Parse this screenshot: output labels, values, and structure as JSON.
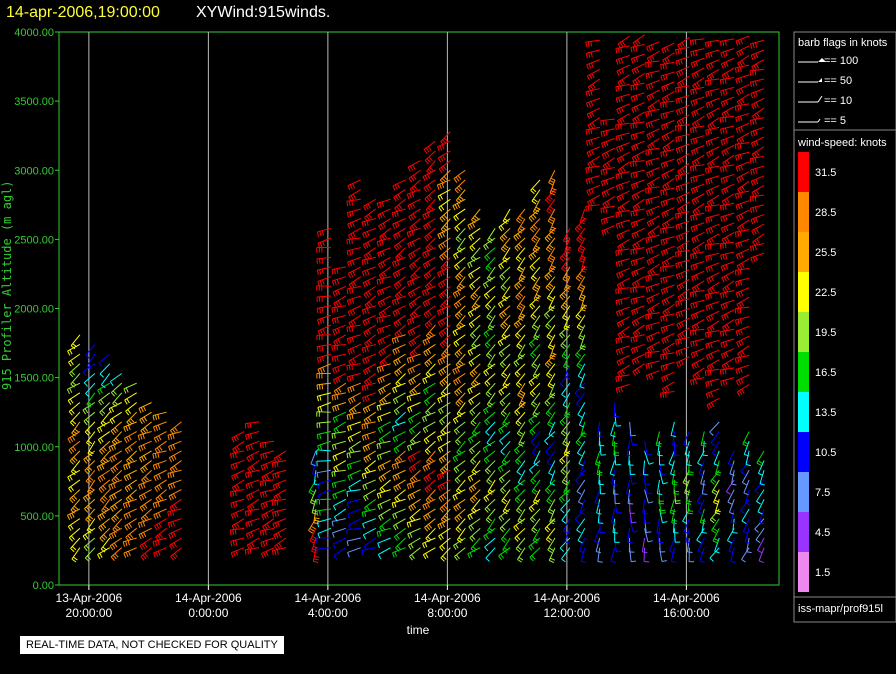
{
  "title": {
    "date": "14-apr-2006,19:00:00",
    "name": "XYWind:915winds."
  },
  "notice": "REAL-TIME DATA, NOT CHECKED FOR QUALITY",
  "source": "iss-mapr/prof915l",
  "chart_data": {
    "type": "wind-barb",
    "xlabel": "time",
    "ylabel": "915 Profiler Altitude (m agl)",
    "ylim": [
      0,
      4000
    ],
    "yticks": [
      "0.00",
      "500.00",
      "1000.00",
      "1500.00",
      "2000.00",
      "2500.00",
      "3000.00",
      "3500.00",
      "4000.00"
    ],
    "xticks": [
      {
        "date": "13-Apr-2006",
        "time": "20:00:00",
        "hour": 20
      },
      {
        "date": "14-Apr-2006",
        "time": "0:00:00",
        "hour": 24
      },
      {
        "date": "14-Apr-2006",
        "time": "4:00:00",
        "hour": 28
      },
      {
        "date": "14-Apr-2006",
        "time": "8:00:00",
        "hour": 32
      },
      {
        "date": "14-Apr-2006",
        "time": "12:00:00",
        "hour": 36
      },
      {
        "date": "14-Apr-2006",
        "time": "16:00:00",
        "hour": 40
      }
    ],
    "xrange_hours": [
      19.0,
      43.1
    ],
    "grid": "vertical",
    "barb_legend": {
      "title": "barb flags in knots",
      "entries": [
        "== 100",
        "== 50",
        "== 10",
        "== 5"
      ]
    },
    "speed_legend": {
      "title": "wind-speed: knots",
      "bins": [
        {
          "label": "31.5",
          "color": "#ff0000"
        },
        {
          "label": "28.5",
          "color": "#ff8800"
        },
        {
          "label": "25.5",
          "color": "#ffaa00"
        },
        {
          "label": "22.5",
          "color": "#ffff00"
        },
        {
          "label": "19.5",
          "color": "#99ee33"
        },
        {
          "label": "16.5",
          "color": "#00dd00"
        },
        {
          "label": "13.5",
          "color": "#00ffff"
        },
        {
          "label": "10.5",
          "color": "#0000ff"
        },
        {
          "label": "7.5",
          "color": "#6699ff"
        },
        {
          "label": "4.5",
          "color": "#9933ff"
        },
        {
          "label": "1.5",
          "color": "#ee88ee"
        }
      ]
    },
    "profiles": [
      {
        "hour": 19.7,
        "top": 1800,
        "speeds": [
          22,
          22,
          25,
          25,
          22,
          22,
          25,
          28,
          25,
          22,
          22,
          19,
          19,
          22,
          22
        ],
        "dirs": [
          230
        ]
      },
      {
        "hour": 20.2,
        "top": 1750,
        "speeds": [
          19,
          22,
          25,
          25,
          28,
          25,
          22,
          22,
          19,
          16,
          13,
          10,
          10
        ],
        "dirs": [
          225
        ]
      },
      {
        "hour": 20.7,
        "top": 1700,
        "speeds": [
          22,
          25,
          25,
          28,
          28,
          25,
          25,
          22,
          22,
          19,
          16,
          13,
          10
        ],
        "dirs": [
          230
        ]
      },
      {
        "hour": 21.1,
        "top": 1500,
        "speeds": [
          28,
          28,
          25,
          25,
          28,
          28,
          25,
          25,
          22,
          19,
          13
        ],
        "dirs": [
          235
        ]
      },
      {
        "hour": 21.6,
        "top": 1450,
        "speeds": [
          28,
          28,
          28,
          25,
          25,
          25,
          28,
          25,
          22,
          19
        ],
        "dirs": [
          240
        ]
      },
      {
        "hour": 22.1,
        "top": 1300,
        "speeds": [
          31,
          28,
          28,
          28,
          28,
          25,
          28,
          25,
          25
        ],
        "dirs": [
          240
        ]
      },
      {
        "hour": 22.6,
        "top": 1250,
        "speeds": [
          31,
          31,
          28,
          28,
          28,
          28,
          28,
          25
        ],
        "dirs": [
          245
        ]
      },
      {
        "hour": 23.1,
        "top": 1200,
        "speeds": [
          31,
          31,
          31,
          28,
          28,
          28,
          28,
          28
        ],
        "dirs": [
          245
        ]
      },
      {
        "hour": 25.2,
        "top": 1100,
        "speeds": [
          31,
          31,
          31,
          31,
          31,
          31,
          31,
          31
        ],
        "dirs": [
          250
        ]
      },
      {
        "hour": 25.7,
        "top": 1150,
        "speeds": [
          31,
          31,
          31,
          31,
          31,
          31,
          31,
          31
        ],
        "dirs": [
          250
        ]
      },
      {
        "hour": 26.2,
        "top": 1050,
        "speeds": [
          31,
          31,
          31,
          31,
          31,
          31,
          31
        ],
        "dirs": [
          250
        ]
      },
      {
        "hour": 26.6,
        "top": 1000,
        "speeds": [
          31,
          31,
          31,
          31,
          31,
          31,
          31
        ],
        "dirs": [
          250
        ]
      },
      {
        "hour": 27.6,
        "top": 1000,
        "speeds": [
          31,
          31,
          28,
          25,
          19,
          16,
          13,
          10,
          7
        ],
        "dirs": [
          200
        ]
      },
      {
        "hour": 28.1,
        "top": 2550,
        "speeds": [
          10,
          13,
          16,
          10,
          7,
          13,
          16,
          19,
          22,
          25,
          28,
          31,
          31,
          31,
          31,
          31,
          31,
          31,
          31
        ],
        "dirs": [
          260
        ]
      },
      {
        "hour": 28.6,
        "top": 2300,
        "speeds": [
          10,
          7,
          13,
          16,
          19,
          22,
          19,
          16,
          25,
          28,
          31,
          31,
          31,
          31,
          31,
          31,
          31
        ],
        "dirs": [
          250
        ]
      },
      {
        "hour": 29.1,
        "top": 2900,
        "speeds": [
          7,
          10,
          10,
          13,
          16,
          19,
          22,
          25,
          28,
          31,
          31,
          31,
          31,
          31,
          31,
          31,
          31,
          31,
          31,
          31
        ],
        "dirs": [
          250
        ]
      },
      {
        "hour": 29.6,
        "top": 2800,
        "speeds": [
          10,
          13,
          16,
          19,
          22,
          25,
          28,
          25,
          31,
          31,
          31,
          31,
          31,
          31,
          31,
          31,
          31,
          31,
          31
        ],
        "dirs": [
          245
        ]
      },
      {
        "hour": 30.1,
        "top": 2800,
        "speeds": [
          13,
          16,
          19,
          22,
          25,
          19,
          16,
          22,
          25,
          28,
          31,
          31,
          31,
          31,
          31,
          31,
          31,
          31,
          31
        ],
        "dirs": [
          245
        ]
      },
      {
        "hour": 30.6,
        "top": 2900,
        "speeds": [
          16,
          19,
          22,
          25,
          28,
          16,
          13,
          19,
          22,
          25,
          28,
          31,
          31,
          31,
          31,
          31,
          31,
          31,
          31
        ],
        "dirs": [
          240
        ]
      },
      {
        "hour": 31.1,
        "top": 3100,
        "speeds": [
          19,
          22,
          25,
          28,
          31,
          19,
          16,
          22,
          25,
          28,
          31,
          31,
          31,
          31,
          31,
          31,
          31,
          31,
          31,
          31
        ],
        "dirs": [
          240
        ]
      },
      {
        "hour": 31.6,
        "top": 3200,
        "speeds": [
          22,
          25,
          28,
          31,
          28,
          22,
          19,
          16,
          22,
          25,
          28,
          31,
          31,
          31,
          31,
          31,
          31,
          31,
          31,
          31
        ],
        "dirs": [
          235
        ]
      },
      {
        "hour": 32.1,
        "top": 3300,
        "speeds": [
          22,
          25,
          28,
          31,
          25,
          22,
          19,
          22,
          25,
          28,
          31,
          31,
          31,
          31,
          28,
          25,
          22,
          28,
          31,
          31
        ],
        "dirs": [
          235
        ]
      },
      {
        "hour": 32.6,
        "top": 3000,
        "speeds": [
          19,
          22,
          25,
          22,
          19,
          16,
          19,
          22,
          25,
          28,
          25,
          22,
          25,
          28,
          25,
          22,
          19,
          22,
          25,
          28
        ],
        "dirs": [
          230
        ]
      },
      {
        "hour": 33.1,
        "top": 2700,
        "speeds": [
          16,
          19,
          22,
          25,
          22,
          19,
          16,
          19,
          22,
          25,
          22,
          19,
          22,
          25,
          22,
          19,
          22,
          25
        ],
        "dirs": [
          230
        ]
      },
      {
        "hour": 33.6,
        "top": 2600,
        "speeds": [
          13,
          16,
          19,
          22,
          19,
          16,
          13,
          16,
          19,
          22,
          19,
          16,
          19,
          22,
          19,
          16,
          19
        ],
        "dirs": [
          225
        ]
      },
      {
        "hour": 34.1,
        "top": 2700,
        "speeds": [
          16,
          19,
          22,
          19,
          16,
          13,
          16,
          19,
          22,
          19,
          22,
          25,
          22,
          19,
          22,
          25,
          22
        ],
        "dirs": [
          225
        ]
      },
      {
        "hour": 34.6,
        "top": 2750,
        "speeds": [
          19,
          22,
          19,
          16,
          13,
          16,
          19,
          22,
          25,
          22,
          19,
          22,
          25,
          28,
          25,
          22,
          25,
          28
        ],
        "dirs": [
          220
        ]
      },
      {
        "hour": 35.1,
        "top": 2900,
        "speeds": [
          16,
          19,
          22,
          16,
          13,
          10,
          16,
          19,
          22,
          19,
          16,
          19,
          22,
          25,
          22,
          25,
          28,
          25,
          22
        ],
        "dirs": [
          220
        ]
      },
      {
        "hour": 35.6,
        "top": 3000,
        "speeds": [
          19,
          22,
          19,
          16,
          13,
          10,
          13,
          16,
          19,
          22,
          25,
          22,
          19,
          22,
          25,
          28,
          25,
          28,
          31,
          28
        ],
        "dirs": [
          215
        ]
      },
      {
        "hour": 36.1,
        "top": 2600,
        "speeds": [
          13,
          10,
          13,
          16,
          19,
          22,
          19,
          16,
          13,
          10,
          16,
          19,
          22,
          25,
          28,
          31,
          31
        ],
        "dirs": [
          215
        ]
      },
      {
        "hour": 36.6,
        "top": 2700,
        "speeds": [
          10,
          13,
          10,
          7,
          10,
          13,
          16,
          13,
          10,
          13,
          16,
          19,
          22,
          25,
          28,
          31,
          31,
          31
        ],
        "dirs": [
          210
        ]
      },
      {
        "hour": 37.1,
        "top": 1200,
        "speeds": [
          7,
          10,
          13,
          10,
          13,
          16,
          13,
          10
        ],
        "dirs": [
          190
        ]
      },
      {
        "hour": 37.6,
        "top": 1300,
        "speeds": [
          10,
          13,
          10,
          7,
          10,
          13,
          16,
          13,
          10
        ],
        "dirs": [
          185
        ]
      },
      {
        "hour": 38.1,
        "top": 1150,
        "speeds": [
          7,
          10,
          4,
          7,
          10,
          13,
          10,
          7
        ],
        "dirs": [
          180
        ]
      },
      {
        "hour": 38.6,
        "top": 1050,
        "speeds": [
          4,
          7,
          10,
          7,
          10,
          13,
          10
        ],
        "dirs": [
          175
        ]
      },
      {
        "hour": 39.1,
        "top": 1100,
        "speeds": [
          7,
          10,
          13,
          16,
          13,
          10,
          13,
          16
        ],
        "dirs": [
          180
        ]
      },
      {
        "hour": 39.6,
        "top": 1150,
        "speeds": [
          10,
          13,
          16,
          19,
          16,
          13,
          10,
          13
        ],
        "dirs": [
          190
        ]
      },
      {
        "hour": 40.1,
        "top": 1100,
        "speeds": [
          7,
          10,
          13,
          16,
          19,
          16,
          13,
          10
        ],
        "dirs": [
          195
        ]
      },
      {
        "hour": 40.6,
        "top": 1100,
        "speeds": [
          10,
          13,
          16,
          10,
          7,
          10,
          13,
          16
        ],
        "dirs": [
          200
        ]
      },
      {
        "hour": 41.1,
        "top": 1200,
        "speeds": [
          13,
          16,
          19,
          22,
          19,
          16,
          13,
          10,
          7
        ],
        "dirs": [
          210
        ]
      },
      {
        "hour": 41.6,
        "top": 1000,
        "speeds": [
          10,
          13,
          10,
          7,
          4,
          7,
          10
        ],
        "dirs": [
          200
        ]
      },
      {
        "hour": 42.1,
        "top": 1100,
        "speeds": [
          7,
          10,
          13,
          10,
          7,
          10,
          13,
          16
        ],
        "dirs": [
          205
        ]
      },
      {
        "hour": 42.6,
        "top": 1000,
        "speeds": [
          4,
          7,
          10,
          13,
          10,
          13,
          16
        ],
        "dirs": [
          210
        ]
      },
      {
        "hour": 38.1,
        "top": 4000,
        "bottom": 1450,
        "speeds": [
          31
        ],
        "dirs": [
          250
        ]
      },
      {
        "hour": 38.6,
        "top": 4000,
        "bottom": 1600,
        "speeds": [
          31
        ],
        "dirs": [
          250
        ]
      },
      {
        "hour": 39.1,
        "top": 4000,
        "bottom": 1550,
        "speeds": [
          31
        ],
        "dirs": [
          250
        ]
      },
      {
        "hour": 39.6,
        "top": 4000,
        "bottom": 1400,
        "speeds": [
          31
        ],
        "dirs": [
          250
        ]
      },
      {
        "hour": 40.1,
        "top": 4000,
        "bottom": 1650,
        "speeds": [
          31
        ],
        "dirs": [
          250
        ]
      },
      {
        "hour": 40.6,
        "top": 4000,
        "bottom": 1500,
        "speeds": [
          31
        ],
        "dirs": [
          250
        ]
      },
      {
        "hour": 41.1,
        "top": 4000,
        "bottom": 1350,
        "speeds": [
          31
        ],
        "dirs": [
          250
        ]
      },
      {
        "hour": 41.6,
        "top": 4000,
        "bottom": 1500,
        "speeds": [
          31
        ],
        "dirs": [
          250
        ]
      },
      {
        "hour": 42.1,
        "top": 4000,
        "bottom": 1450,
        "speeds": [
          31
        ],
        "dirs": [
          250
        ]
      },
      {
        "hour": 42.6,
        "top": 4000,
        "bottom": 2400,
        "speeds": [
          31
        ],
        "dirs": [
          250
        ]
      },
      {
        "hour": 37.1,
        "top": 4000,
        "bottom": 2750,
        "speeds": [
          31
        ],
        "dirs": [
          250
        ]
      },
      {
        "hour": 37.6,
        "top": 3400,
        "bottom": 2600,
        "speeds": [
          31
        ],
        "dirs": [
          250
        ]
      }
    ]
  }
}
